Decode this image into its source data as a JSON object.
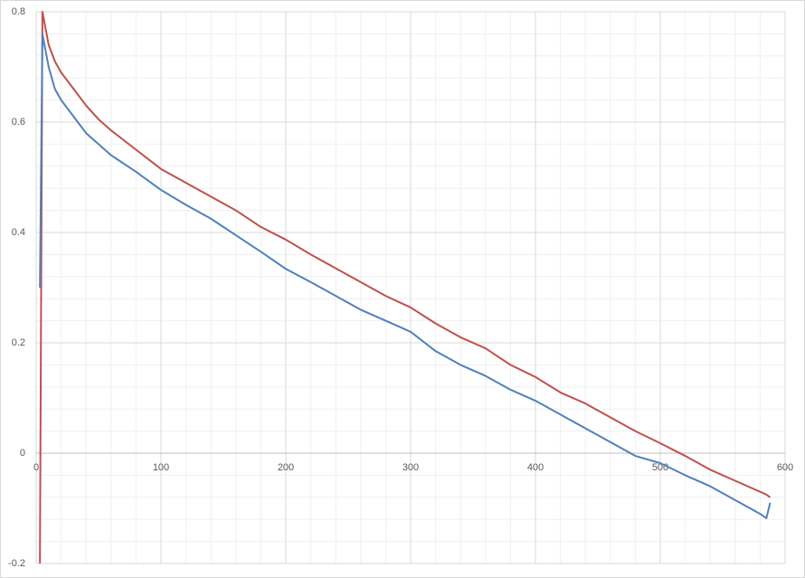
{
  "chart_data": {
    "type": "line",
    "x": [
      3,
      5,
      10,
      15,
      20,
      30,
      40,
      50,
      60,
      80,
      100,
      120,
      140,
      160,
      180,
      200,
      220,
      240,
      260,
      280,
      300,
      320,
      340,
      360,
      380,
      400,
      420,
      440,
      460,
      480,
      500,
      520,
      540,
      560,
      580,
      585,
      588
    ],
    "series": [
      {
        "color": "#c0504d",
        "values": [
          -0.2,
          0.8,
          0.74,
          0.71,
          0.69,
          0.66,
          0.63,
          0.605,
          0.585,
          0.55,
          0.515,
          0.49,
          0.465,
          0.44,
          0.41,
          0.387,
          0.36,
          0.335,
          0.31,
          0.285,
          0.264,
          0.235,
          0.21,
          0.19,
          0.16,
          0.138,
          0.11,
          0.09,
          0.065,
          0.04,
          0.018,
          -0.005,
          -0.03,
          -0.05,
          -0.07,
          -0.075,
          -0.08
        ]
      },
      {
        "color": "#4f81bd",
        "values": [
          0.3,
          0.76,
          0.7,
          0.66,
          0.64,
          0.61,
          0.58,
          0.56,
          0.54,
          0.51,
          0.477,
          0.45,
          0.425,
          0.395,
          0.365,
          0.334,
          0.31,
          0.285,
          0.26,
          0.24,
          0.22,
          0.185,
          0.16,
          0.14,
          0.115,
          0.095,
          0.07,
          0.045,
          0.02,
          -0.005,
          -0.018,
          -0.04,
          -0.06,
          -0.085,
          -0.11,
          -0.118,
          -0.09
        ]
      }
    ],
    "xlim": [
      0,
      600
    ],
    "xticks": [
      0,
      100,
      200,
      300,
      400,
      500,
      600
    ],
    "ylim": [
      -0.2,
      0.8
    ],
    "yticks": [
      -0.2,
      0,
      0.2,
      0.4,
      0.6,
      0.8
    ],
    "grid": true
  }
}
